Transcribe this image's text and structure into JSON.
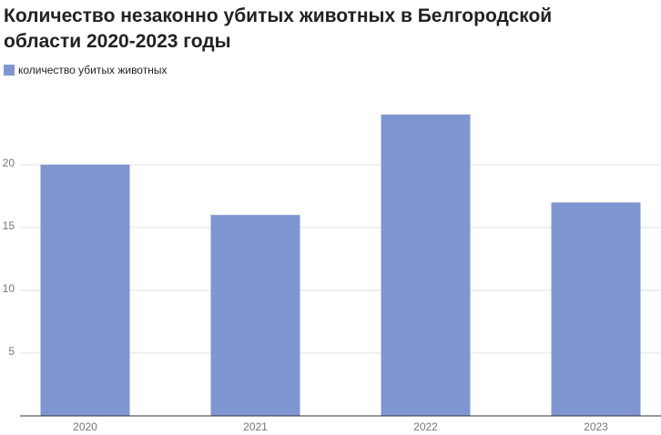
{
  "chart_data": {
    "type": "bar",
    "title": "Количество незаконно убитых животных в Белгородской области 2020-2023 годы",
    "series": [
      {
        "name": "количество убитых животных",
        "color": "#7f96d2",
        "values": [
          20,
          16,
          24,
          17
        ]
      }
    ],
    "categories": [
      "2020",
      "2021",
      "2022",
      "2023"
    ],
    "ylim": [
      0,
      25
    ],
    "yticks": [
      5,
      10,
      15,
      20
    ],
    "grid": true
  }
}
